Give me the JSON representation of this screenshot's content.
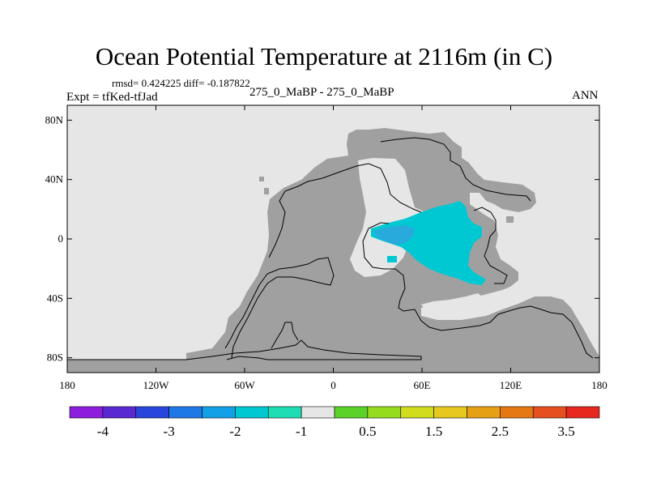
{
  "title": "Ocean Potential Temperature at 2116m (in C)",
  "stats": "rmsd= 0.424225 diff= -0.187822",
  "experiment": "Expt = tfKed-tfJad",
  "case_label": "275_0_MaBP - 275_0_MaBP",
  "season": "ANN",
  "colors": {
    "land": "#a0a0a0",
    "near_zero": "#e6e6e6",
    "anomaly": "#00c8d2",
    "anomaly_strong": "#28aadc"
  },
  "chart_data": {
    "type": "heatmap",
    "x_ticks": [
      "180",
      "120W",
      "60W",
      "0",
      "60E",
      "120E",
      "180"
    ],
    "y_ticks": [
      "80N",
      "40N",
      "0",
      "40S",
      "80S"
    ],
    "xlim": [
      -180,
      180
    ],
    "ylim": [
      -90,
      90
    ],
    "colorbar": {
      "colors": [
        "#8c1edc",
        "#5a28d2",
        "#2846dc",
        "#1e78e6",
        "#14a0e6",
        "#00c8d2",
        "#1edcb4",
        "#e6e6e6",
        "#5ad228",
        "#96dc1e",
        "#d2dc1e",
        "#e6c81e",
        "#e6a014",
        "#e67814",
        "#e6501e",
        "#e6281e"
      ],
      "labels": [
        "-4",
        "-3",
        "-2",
        "-1",
        "0.5",
        "1.5",
        "2.5",
        "3.5"
      ]
    }
  }
}
